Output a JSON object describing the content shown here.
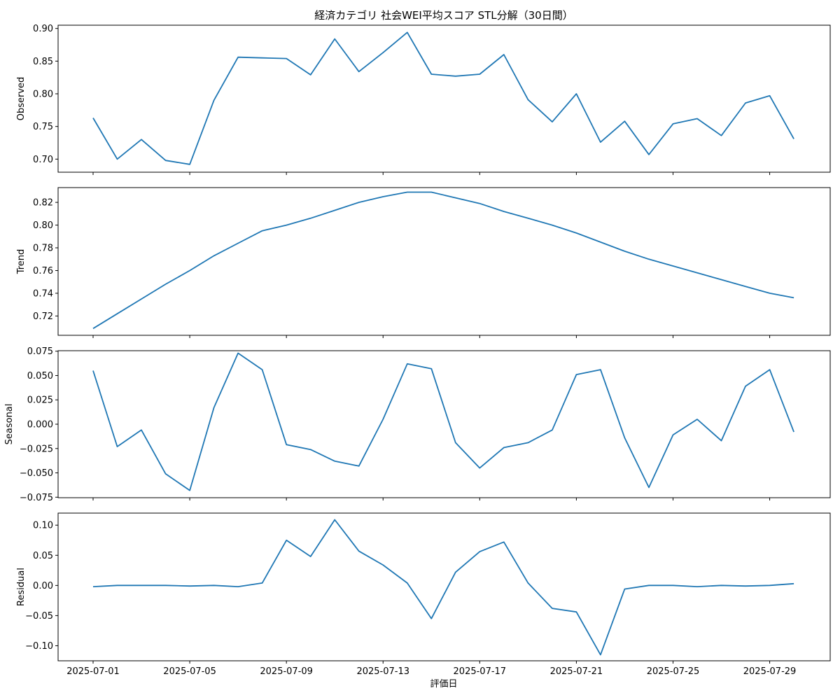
{
  "title": "経済カテゴリ 社会WEI平均スコア STL分解（30日間）",
  "xlabel": "評価日",
  "colors": {
    "line": "#1f77b4",
    "frame": "#000000",
    "background": "#ffffff"
  },
  "chart_data": {
    "type": "line",
    "title": "経済カテゴリ 社会WEI平均スコア STL分解（30日間）",
    "xlabel": "評価日",
    "x": [
      "2025-07-01",
      "2025-07-02",
      "2025-07-03",
      "2025-07-04",
      "2025-07-05",
      "2025-07-06",
      "2025-07-07",
      "2025-07-08",
      "2025-07-09",
      "2025-07-10",
      "2025-07-11",
      "2025-07-12",
      "2025-07-13",
      "2025-07-14",
      "2025-07-15",
      "2025-07-16",
      "2025-07-17",
      "2025-07-18",
      "2025-07-19",
      "2025-07-20",
      "2025-07-21",
      "2025-07-22",
      "2025-07-23",
      "2025-07-24",
      "2025-07-25",
      "2025-07-26",
      "2025-07-27",
      "2025-07-28",
      "2025-07-29",
      "2025-07-30"
    ],
    "x_ticks": [
      "2025-07-01",
      "2025-07-05",
      "2025-07-09",
      "2025-07-13",
      "2025-07-17",
      "2025-07-21",
      "2025-07-25",
      "2025-07-29"
    ],
    "grid": false,
    "panels": [
      {
        "ylabel": "Observed",
        "ylim": [
          0.68,
          0.905
        ],
        "yticks": [
          "0.70",
          "0.75",
          "0.80",
          "0.85",
          "0.90"
        ],
        "values": [
          0.763,
          0.7,
          0.73,
          0.698,
          0.692,
          0.79,
          0.856,
          0.855,
          0.854,
          0.829,
          0.884,
          0.834,
          0.863,
          0.894,
          0.83,
          0.827,
          0.83,
          0.86,
          0.791,
          0.757,
          0.8,
          0.726,
          0.758,
          0.707,
          0.754,
          0.762,
          0.736,
          0.786,
          0.797,
          0.731
        ]
      },
      {
        "ylabel": "Trend",
        "ylim": [
          0.703,
          0.833
        ],
        "yticks": [
          "0.72",
          "0.74",
          "0.76",
          "0.78",
          "0.80",
          "0.82"
        ],
        "values": [
          0.709,
          0.722,
          0.735,
          0.748,
          0.76,
          0.773,
          0.784,
          0.795,
          0.8,
          0.806,
          0.813,
          0.82,
          0.825,
          0.829,
          0.829,
          0.824,
          0.819,
          0.812,
          0.806,
          0.8,
          0.793,
          0.785,
          0.777,
          0.77,
          0.764,
          0.758,
          0.752,
          0.746,
          0.74,
          0.736
        ]
      },
      {
        "ylabel": "Seasonal",
        "ylim": [
          -0.0755,
          0.0755
        ],
        "yticks": [
          "−0.075",
          "−0.050",
          "−0.025",
          "0.000",
          "0.025",
          "0.050",
          "0.075"
        ],
        "values": [
          0.055,
          -0.023,
          -0.006,
          -0.051,
          -0.068,
          0.017,
          0.073,
          0.056,
          -0.021,
          -0.026,
          -0.038,
          -0.043,
          0.005,
          0.062,
          0.057,
          -0.019,
          -0.045,
          -0.024,
          -0.019,
          -0.006,
          0.051,
          0.056,
          -0.014,
          -0.065,
          -0.011,
          0.005,
          -0.017,
          0.039,
          0.056,
          -0.008
        ]
      },
      {
        "ylabel": "Residual",
        "ylim": [
          -0.125,
          0.12
        ],
        "yticks": [
          "−0.10",
          "−0.05",
          "0.00",
          "0.05",
          "0.10"
        ],
        "values": [
          -0.002,
          0.0,
          0.0,
          0.0,
          -0.001,
          0.0,
          -0.002,
          0.004,
          0.075,
          0.048,
          0.109,
          0.057,
          0.034,
          0.004,
          -0.055,
          0.022,
          0.056,
          0.072,
          0.004,
          -0.038,
          -0.044,
          -0.115,
          -0.006,
          0.0,
          0.0,
          -0.002,
          0.0,
          -0.001,
          0.0,
          0.003
        ]
      }
    ]
  }
}
